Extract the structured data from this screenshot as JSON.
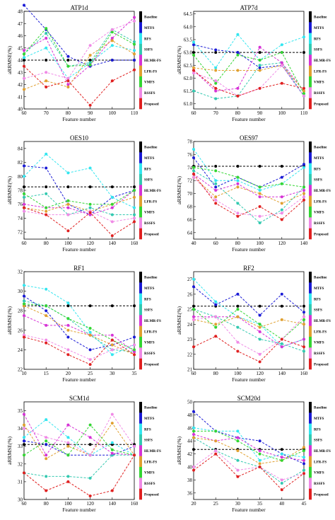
{
  "legend_labels": [
    "Baseline",
    "MTFS",
    "RFS",
    "SSFS",
    "HLMR-FS",
    "LFR-FS",
    "VMFS",
    "RSSFS",
    "Proposed"
  ],
  "series_colors": [
    "#000000",
    "#1a1ad6",
    "#33e6f0",
    "#33c9b0",
    "#d633d6",
    "#e0a030",
    "#33d633",
    "#f08ae6",
    "#e02020"
  ],
  "chart_data": [
    {
      "type": "line",
      "title": "ATP1d",
      "xlabel": "Feature number",
      "ylabel": "aRRMSE(%)",
      "x": [
        60,
        70,
        80,
        90,
        100,
        110
      ],
      "xticks": [
        60,
        70,
        80,
        90,
        100,
        110
      ],
      "ylim": [
        40,
        48
      ],
      "yticks": [
        40,
        41,
        42,
        43,
        44,
        45,
        46,
        47,
        48
      ],
      "series": [
        {
          "name": "Baseline",
          "values": [
            44.0,
            44.0,
            44.0,
            44.0,
            44.0,
            44.0
          ]
        },
        {
          "name": "MTFS",
          "values": [
            48.5,
            46.5,
            44.3,
            43.5,
            44.0,
            44.0
          ]
        },
        {
          "name": "RFS",
          "values": [
            44.2,
            45.0,
            42.5,
            43.8,
            45.2,
            44.8
          ]
        },
        {
          "name": "SSFS",
          "values": [
            44.5,
            46.2,
            43.5,
            43.8,
            46.5,
            45.5
          ]
        },
        {
          "name": "HLMR-FS",
          "values": [
            44.8,
            45.8,
            42.0,
            43.6,
            45.8,
            47.5
          ]
        },
        {
          "name": "LFR-FS",
          "values": [
            41.6,
            42.3,
            41.8,
            44.4,
            45.6,
            44.5
          ]
        },
        {
          "name": "VMFS",
          "values": [
            44.5,
            46.6,
            43.5,
            43.6,
            46.3,
            45.3
          ]
        },
        {
          "name": "RSSFS",
          "values": [
            42.5,
            43.0,
            42.5,
            45.2,
            46.5,
            47.2
          ]
        },
        {
          "name": "Proposed",
          "values": [
            43.5,
            41.8,
            42.3,
            40.3,
            42.3,
            43.2
          ]
        }
      ]
    },
    {
      "type": "line",
      "title": "ATP7d",
      "xlabel": "Feature number",
      "ylabel": "aRRMSE(%)",
      "x": [
        60,
        70,
        80,
        90,
        100,
        110
      ],
      "xticks": [
        60,
        70,
        80,
        90,
        100,
        110
      ],
      "ylim": [
        60.8,
        64.6
      ],
      "yticks": [
        61.0,
        61.5,
        62.0,
        62.5,
        63.0,
        63.5,
        64.0,
        64.5
      ],
      "series": [
        {
          "name": "Baseline",
          "values": [
            63.0,
            63.0,
            63.0,
            63.0,
            63.0,
            63.0
          ]
        },
        {
          "name": "MTFS",
          "values": [
            63.3,
            63.1,
            63.0,
            62.4,
            62.5,
            61.3
          ]
        },
        {
          "name": "RFS",
          "values": [
            63.4,
            62.4,
            63.7,
            62.7,
            63.3,
            63.6
          ]
        },
        {
          "name": "SSFS",
          "values": [
            61.5,
            61.2,
            61.3,
            62.5,
            62.6,
            61.3
          ]
        },
        {
          "name": "HLMR-FS",
          "values": [
            62.3,
            61.5,
            61.6,
            63.2,
            62.6,
            61.5
          ]
        },
        {
          "name": "LFR-FS",
          "values": [
            62.4,
            62.3,
            62.3,
            62.3,
            62.5,
            61.5
          ]
        },
        {
          "name": "VMFS",
          "values": [
            62.9,
            61.8,
            62.9,
            62.7,
            63.0,
            61.4
          ]
        },
        {
          "name": "RSSFS",
          "values": [
            62.2,
            61.9,
            61.3,
            61.6,
            62.5,
            61.3
          ]
        },
        {
          "name": "Proposed",
          "values": [
            62.3,
            61.6,
            61.3,
            61.6,
            61.8,
            61.6
          ]
        }
      ]
    },
    {
      "type": "line",
      "title": "OES10",
      "xlabel": "Feature number",
      "ylabel": "aRRMSE(%)",
      "x": [
        60,
        80,
        100,
        120,
        140,
        160
      ],
      "xticks": [
        60,
        80,
        100,
        120,
        140,
        160
      ],
      "ylim": [
        71,
        85
      ],
      "yticks": [
        72,
        74,
        76,
        78,
        80,
        82,
        84
      ],
      "series": [
        {
          "name": "Baseline",
          "values": [
            78.5,
            78.5,
            78.5,
            78.5,
            78.5,
            78.5
          ]
        },
        {
          "name": "MTFS",
          "values": [
            81.5,
            81.2,
            76.0,
            74.5,
            77.0,
            78.0
          ]
        },
        {
          "name": "RFS",
          "values": [
            80.0,
            83.2,
            80.5,
            81.2,
            77.0,
            75.5
          ]
        },
        {
          "name": "SSFS",
          "values": [
            77.0,
            77.5,
            74.5,
            75.5,
            74.5,
            74.5
          ]
        },
        {
          "name": "HLMR-FS",
          "values": [
            76.0,
            75.5,
            75.5,
            74.5,
            75.5,
            78.0
          ]
        },
        {
          "name": "LFR-FS",
          "values": [
            75.5,
            75.0,
            76.0,
            75.0,
            76.0,
            77.0
          ]
        },
        {
          "name": "VMFS",
          "values": [
            77.5,
            75.5,
            76.5,
            76.0,
            76.0,
            78.0
          ]
        },
        {
          "name": "RSSFS",
          "values": [
            75.0,
            74.5,
            74.5,
            75.0,
            73.5,
            74.0
          ]
        },
        {
          "name": "Proposed",
          "values": [
            75.5,
            74.5,
            72.2,
            74.8,
            71.5,
            73.5
          ]
        }
      ]
    },
    {
      "type": "line",
      "title": "OES97",
      "xlabel": "Feature number",
      "ylabel": "aRRMSE(%)",
      "x": [
        40,
        60,
        80,
        100,
        120,
        140
      ],
      "xticks": [
        40,
        60,
        80,
        100,
        120,
        140
      ],
      "ylim": [
        63,
        78
      ],
      "yticks": [
        64,
        66,
        68,
        70,
        72,
        74,
        76,
        78
      ],
      "series": [
        {
          "name": "Baseline",
          "values": [
            74.2,
            74.2,
            74.2,
            74.2,
            74.2,
            74.2
          ]
        },
        {
          "name": "MTFS",
          "values": [
            75.5,
            71.0,
            72.5,
            71.0,
            72.5,
            74.5
          ]
        },
        {
          "name": "RFS",
          "values": [
            76.8,
            72.0,
            72.0,
            70.5,
            71.5,
            74.0
          ]
        },
        {
          "name": "SSFS",
          "values": [
            73.5,
            71.5,
            68.5,
            65.5,
            67.5,
            71.0
          ]
        },
        {
          "name": "HLMR-FS",
          "values": [
            73.0,
            70.5,
            71.5,
            69.5,
            69.5,
            70.5
          ]
        },
        {
          "name": "LFR-FS",
          "values": [
            72.5,
            69.5,
            71.0,
            70.0,
            68.5,
            70.0
          ]
        },
        {
          "name": "VMFS",
          "values": [
            74.0,
            73.5,
            72.5,
            71.0,
            71.5,
            71.0
          ]
        },
        {
          "name": "RSSFS",
          "values": [
            72.5,
            69.0,
            67.0,
            66.5,
            67.0,
            69.5
          ]
        },
        {
          "name": "Proposed",
          "values": [
            73.0,
            68.5,
            66.5,
            68.0,
            66.0,
            69.0
          ]
        }
      ]
    },
    {
      "type": "line",
      "title": "RF1",
      "xlabel": "Feature number",
      "ylabel": "aRRMSE(%)",
      "x": [
        10,
        15,
        20,
        25,
        30,
        35
      ],
      "xticks": [
        10,
        15,
        20,
        25,
        30,
        35
      ],
      "ylim": [
        22,
        32
      ],
      "yticks": [
        22,
        24,
        26,
        28,
        30,
        32
      ],
      "series": [
        {
          "name": "Baseline",
          "values": [
            28.5,
            28.5,
            28.5,
            28.5,
            28.5,
            28.5
          ]
        },
        {
          "name": "MTFS",
          "values": [
            29.5,
            28.0,
            25.3,
            24.0,
            24.5,
            25.3
          ]
        },
        {
          "name": "RFS",
          "values": [
            30.6,
            30.2,
            28.8,
            25.8,
            23.5,
            24.5
          ]
        },
        {
          "name": "SSFS",
          "values": [
            29.0,
            28.5,
            27.2,
            25.5,
            24.0,
            23.8
          ]
        },
        {
          "name": "HLMR-FS",
          "values": [
            27.5,
            26.5,
            26.5,
            25.5,
            25.5,
            23.8
          ]
        },
        {
          "name": "LFR-FS",
          "values": [
            28.5,
            27.5,
            26.0,
            25.5,
            24.5,
            23.5
          ]
        },
        {
          "name": "VMFS",
          "values": [
            28.7,
            28.5,
            27.2,
            26.2,
            25.0,
            24.0
          ]
        },
        {
          "name": "RSSFS",
          "values": [
            25.5,
            25.0,
            24.0,
            23.0,
            24.0,
            24.5
          ]
        },
        {
          "name": "Proposed",
          "values": [
            25.3,
            24.7,
            23.5,
            22.5,
            25.0,
            23.5
          ]
        }
      ]
    },
    {
      "type": "line",
      "title": "RF2",
      "xlabel": "Feature number",
      "ylabel": "aRRMSE(%)",
      "x": [
        60,
        80,
        100,
        120,
        140,
        160
      ],
      "xticks": [
        60,
        80,
        100,
        120,
        140,
        160
      ],
      "ylim": [
        21,
        27.5
      ],
      "yticks": [
        21,
        22,
        23,
        24,
        25,
        26,
        27
      ],
      "series": [
        {
          "name": "Baseline",
          "values": [
            25.2,
            25.2,
            25.2,
            25.2,
            25.2,
            25.2
          ]
        },
        {
          "name": "MTFS",
          "values": [
            26.5,
            25.3,
            26.0,
            24.6,
            26.0,
            24.8
          ]
        },
        {
          "name": "RFS",
          "values": [
            27.0,
            25.5,
            24.5,
            24.0,
            22.5,
            23.0
          ]
        },
        {
          "name": "SSFS",
          "values": [
            25.0,
            24.5,
            23.8,
            23.0,
            22.7,
            22.2
          ]
        },
        {
          "name": "HLMR-FS",
          "values": [
            24.5,
            24.5,
            24.5,
            23.5,
            22.5,
            23.0
          ]
        },
        {
          "name": "LFR-FS",
          "values": [
            24.3,
            24.0,
            24.5,
            23.8,
            24.3,
            24.0
          ]
        },
        {
          "name": "VMFS",
          "values": [
            25.0,
            23.8,
            25.0,
            24.0,
            23.0,
            24.3
          ]
        },
        {
          "name": "RSSFS",
          "values": [
            24.3,
            24.5,
            22.8,
            22.0,
            23.0,
            24.5
          ]
        },
        {
          "name": "Proposed",
          "values": [
            22.5,
            23.2,
            22.2,
            21.5,
            23.0,
            22.5
          ]
        }
      ]
    },
    {
      "type": "line",
      "title": "SCM1d",
      "xlabel": "Feature number",
      "ylabel": "aRRMSE(%)",
      "x": [
        60,
        80,
        100,
        120,
        140,
        160
      ],
      "xticks": [
        60,
        80,
        100,
        120,
        140,
        160
      ],
      "ylim": [
        30,
        35.5
      ],
      "yticks": [
        30,
        31,
        32,
        33,
        34,
        35
      ],
      "series": [
        {
          "name": "Baseline",
          "values": [
            33.1,
            33.1,
            33.1,
            33.1,
            33.1,
            33.1
          ]
        },
        {
          "name": "MTFS",
          "values": [
            33.3,
            33.1,
            32.5,
            32.5,
            32.5,
            33.0
          ]
        },
        {
          "name": "RFS",
          "values": [
            33.5,
            34.5,
            33.5,
            32.5,
            33.2,
            32.5
          ]
        },
        {
          "name": "SSFS",
          "values": [
            31.5,
            31.3,
            31.3,
            31.2,
            32.5,
            32.5
          ]
        },
        {
          "name": "HLMR-FS",
          "values": [
            34.8,
            32.5,
            34.2,
            33.5,
            32.6,
            32.5
          ]
        },
        {
          "name": "LFR-FS",
          "values": [
            34.2,
            32.3,
            33.0,
            32.5,
            34.3,
            32.5
          ]
        },
        {
          "name": "VMFS",
          "values": [
            32.5,
            33.3,
            32.5,
            34.2,
            32.8,
            32.5
          ]
        },
        {
          "name": "RSSFS",
          "values": [
            34.0,
            33.5,
            33.2,
            32.5,
            34.8,
            33.0
          ]
        },
        {
          "name": "Proposed",
          "values": [
            31.5,
            30.5,
            31.0,
            30.2,
            30.5,
            32.5
          ]
        }
      ]
    },
    {
      "type": "line",
      "title": "SCM20d",
      "xlabel": "Feature number",
      "ylabel": "aRRMSE(%)",
      "x": [
        20,
        25,
        30,
        35,
        40,
        45
      ],
      "xticks": [
        20,
        25,
        30,
        35,
        40,
        45
      ],
      "ylim": [
        35,
        50
      ],
      "yticks": [
        36,
        38,
        40,
        42,
        44,
        46,
        48,
        50
      ],
      "series": [
        {
          "name": "Baseline",
          "values": [
            42.7,
            42.7,
            42.7,
            42.7,
            42.7,
            42.7
          ]
        },
        {
          "name": "MTFS",
          "values": [
            48.5,
            45.5,
            44.5,
            44.0,
            42.0,
            40.5
          ]
        },
        {
          "name": "RFS",
          "values": [
            46.0,
            45.5,
            45.5,
            41.0,
            42.0,
            41.5
          ]
        },
        {
          "name": "SSFS",
          "values": [
            44.5,
            42.5,
            41.0,
            40.0,
            37.5,
            39.5
          ]
        },
        {
          "name": "HLMR-FS",
          "values": [
            45.0,
            44.0,
            44.5,
            42.5,
            41.5,
            41.0
          ]
        },
        {
          "name": "LFR-FS",
          "values": [
            44.5,
            44.0,
            42.5,
            40.5,
            41.0,
            43.0
          ]
        },
        {
          "name": "VMFS",
          "values": [
            45.5,
            45.5,
            44.0,
            42.0,
            41.0,
            42.5
          ]
        },
        {
          "name": "RSSFS",
          "values": [
            40.0,
            42.5,
            39.5,
            40.0,
            38.0,
            39.0
          ]
        },
        {
          "name": "Proposed",
          "values": [
            39.5,
            42.0,
            38.5,
            40.0,
            36.5,
            39.0
          ]
        }
      ]
    }
  ]
}
